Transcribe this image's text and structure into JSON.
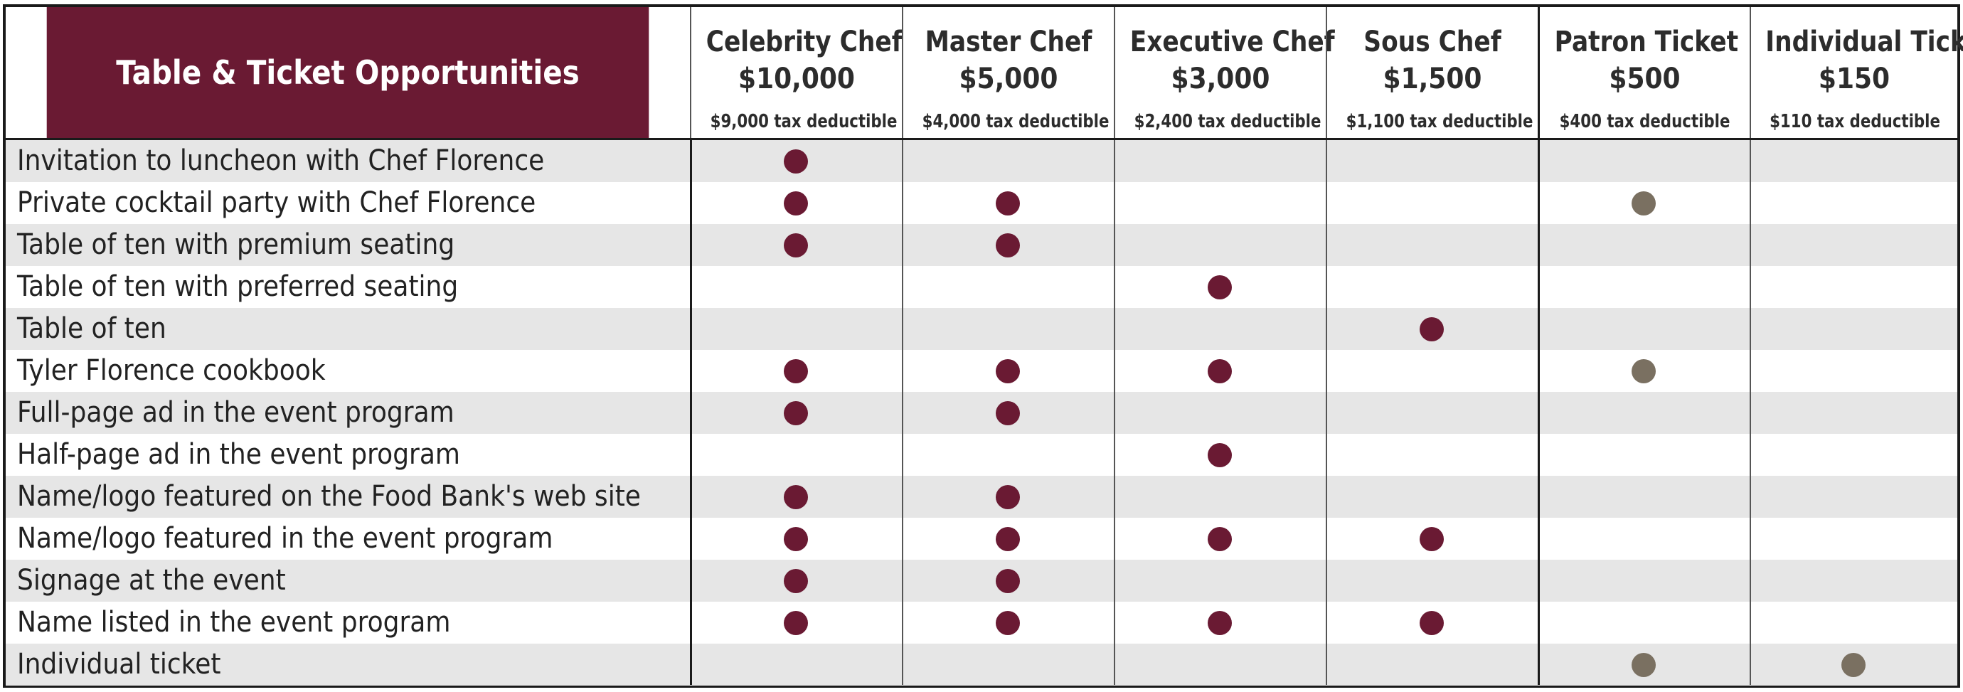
{
  "title": "Table & Ticket Opportunities",
  "tiers": [
    {
      "name": "Celebrity Chef",
      "price": "$10,000",
      "tax": "$9,000 tax deductible"
    },
    {
      "name": "Master Chef",
      "price": "$5,000",
      "tax": "$4,000 tax deductible"
    },
    {
      "name": "Executive Chef",
      "price": "$3,000",
      "tax": "$2,400 tax deductible"
    },
    {
      "name": "Sous Chef",
      "price": "$1,500",
      "tax": "$1,100 tax deductible"
    },
    {
      "name": "Patron Ticket",
      "price": "$500",
      "tax": "$400 tax deductible"
    },
    {
      "name": "Individual Ticket",
      "price": "$150",
      "tax": "$110 tax deductible"
    }
  ],
  "benefits": [
    {
      "label": "Invitation to luncheon with Chef Florence",
      "included": [
        true,
        false,
        false,
        false,
        false,
        false
      ]
    },
    {
      "label": "Private cocktail party with Chef Florence",
      "included": [
        true,
        true,
        false,
        false,
        true,
        false
      ]
    },
    {
      "label": "Table of ten with premium seating",
      "included": [
        true,
        true,
        false,
        false,
        false,
        false
      ]
    },
    {
      "label": "Table of ten with preferred seating",
      "included": [
        false,
        false,
        true,
        false,
        false,
        false
      ]
    },
    {
      "label": "Table of ten",
      "included": [
        false,
        false,
        false,
        true,
        false,
        false
      ]
    },
    {
      "label": "Tyler Florence cookbook",
      "included": [
        true,
        true,
        true,
        false,
        true,
        false
      ]
    },
    {
      "label": "Full-page ad in the event program",
      "included": [
        true,
        true,
        false,
        false,
        false,
        false
      ]
    },
    {
      "label": "Half-page ad in the event program",
      "included": [
        false,
        false,
        true,
        false,
        false,
        false
      ]
    },
    {
      "label": "Name/logo featured on the Food Bank's web site",
      "included": [
        true,
        true,
        false,
        false,
        false,
        false
      ]
    },
    {
      "label": "Name/logo featured in the event program",
      "included": [
        true,
        true,
        true,
        true,
        false,
        false
      ]
    },
    {
      "label": "Signage at the event",
      "included": [
        true,
        true,
        false,
        false,
        false,
        false
      ]
    },
    {
      "label": "Name listed in the event program",
      "included": [
        true,
        true,
        true,
        true,
        false,
        false
      ]
    },
    {
      "label": "Individual ticket",
      "included": [
        false,
        false,
        false,
        false,
        true,
        true
      ]
    }
  ],
  "colors": {
    "brand_maroon": "#6a1a33",
    "ticket_taupe": "#7a7061",
    "row_shade": "#e6e6e6"
  }
}
